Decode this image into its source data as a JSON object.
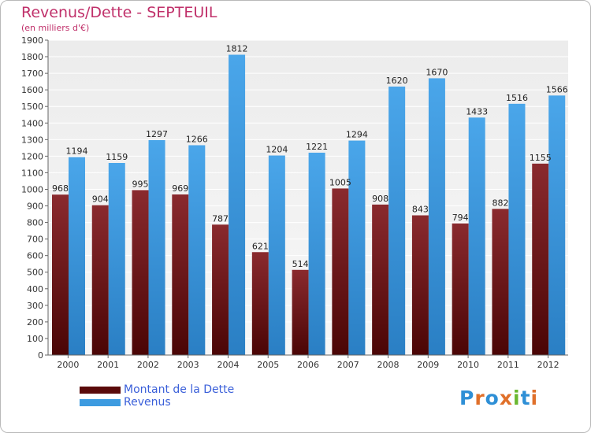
{
  "header": {
    "title": "Revenus/Dette - SEPTEUIL",
    "subtitle": "(en milliers d'€)"
  },
  "chart_data": {
    "type": "bar",
    "title": "Revenus/Dette - SEPTEUIL",
    "ylabel": "(en milliers d'€)",
    "xlabel": "",
    "categories": [
      "2000",
      "2001",
      "2002",
      "2003",
      "2004",
      "2005",
      "2006",
      "2007",
      "2008",
      "2009",
      "2010",
      "2011",
      "2012"
    ],
    "series": [
      {
        "name": "Montant de la Dette",
        "color": "#7a1e22",
        "values": [
          968,
          904,
          995,
          969,
          787,
          621,
          514,
          1005,
          908,
          843,
          794,
          882,
          1155
        ]
      },
      {
        "name": "Revenus",
        "color": "#3d9be0",
        "values": [
          1194,
          1159,
          1297,
          1266,
          1812,
          1204,
          1221,
          1294,
          1620,
          1670,
          1433,
          1516,
          1566
        ]
      }
    ],
    "ylim": [
      0,
      1900
    ],
    "yticks": [
      0,
      100,
      200,
      300,
      400,
      500,
      600,
      700,
      800,
      900,
      1000,
      1100,
      1200,
      1300,
      1400,
      1500,
      1600,
      1700,
      1800,
      1900
    ],
    "grid": true,
    "legend_position": "bottom-left"
  },
  "legend": [
    {
      "label": "Montant de la Dette",
      "color": "#5a0a0a"
    },
    {
      "label": "Revenus",
      "color": "#3d9be0"
    }
  ],
  "logo": {
    "letters": [
      "P",
      "r",
      "o",
      "x",
      "i",
      "t",
      "i"
    ],
    "colors": [
      "#2e8fd6",
      "#e0702a",
      "#2e8fd6",
      "#e0702a",
      "#6bb830",
      "#2e8fd6",
      "#e0702a"
    ]
  }
}
